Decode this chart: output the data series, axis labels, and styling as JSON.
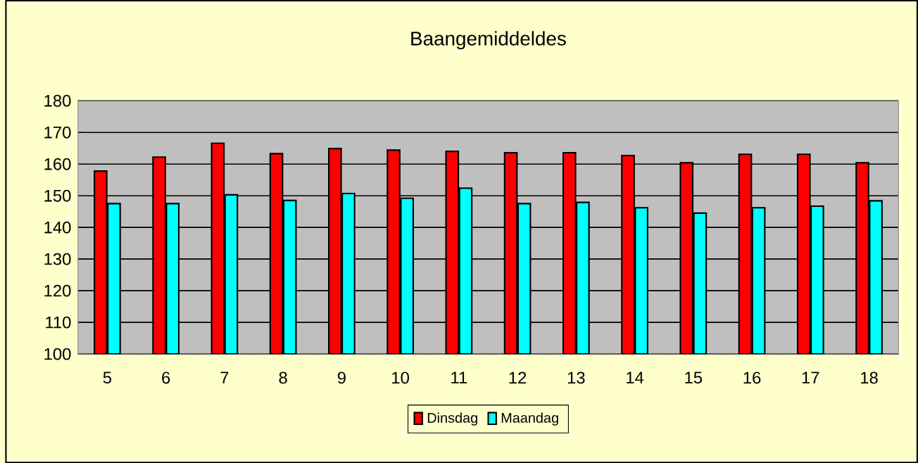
{
  "chart_data": {
    "type": "bar",
    "title": "Baangemiddeldes",
    "categories": [
      "5",
      "6",
      "7",
      "8",
      "9",
      "10",
      "11",
      "12",
      "13",
      "14",
      "15",
      "16",
      "17",
      "18"
    ],
    "series": [
      {
        "name": "Dinsdag",
        "color": "#ff0000",
        "values": [
          157.8,
          162.2,
          166.6,
          163.3,
          164.9,
          164.4,
          164.0,
          163.6,
          163.6,
          162.7,
          160.4,
          163.1,
          163.1,
          160.4
        ]
      },
      {
        "name": "Maandag",
        "color": "#00ffff",
        "values": [
          147.5,
          147.5,
          150.3,
          148.5,
          150.7,
          149.2,
          152.4,
          147.5,
          147.9,
          146.2,
          144.5,
          146.2,
          146.7,
          148.4
        ]
      }
    ],
    "ylim": [
      100,
      180
    ],
    "yticks": [
      100,
      110,
      120,
      130,
      140,
      150,
      160,
      170,
      180
    ],
    "grid": "y",
    "legend": "bottom"
  }
}
